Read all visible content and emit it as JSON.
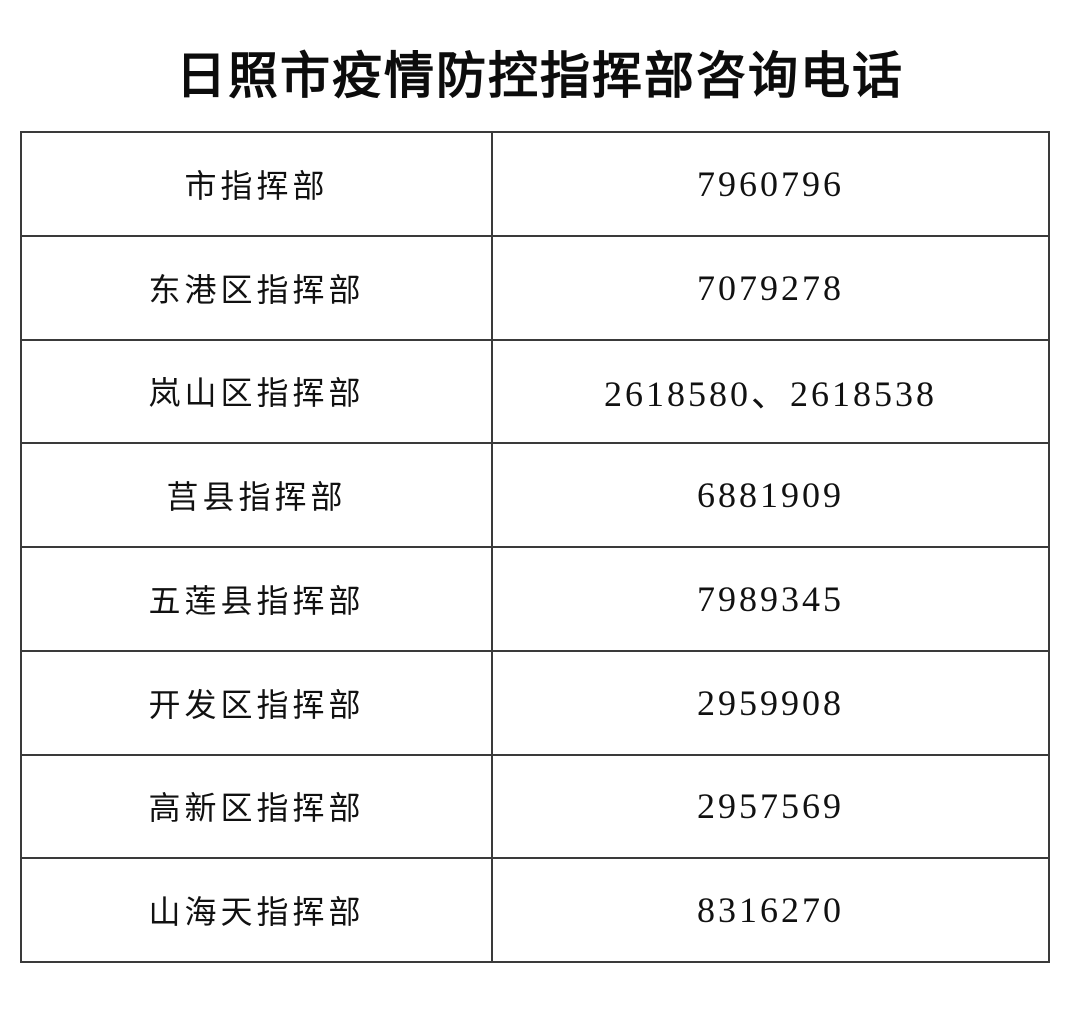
{
  "page": {
    "title": "日照市疫情防控指挥部咨询电话"
  },
  "table": {
    "rows": [
      {
        "name": "市指挥部",
        "phone": "7960796"
      },
      {
        "name": "东港区指挥部",
        "phone": "7079278"
      },
      {
        "name": "岚山区指挥部",
        "phone": "2618580、2618538"
      },
      {
        "name": "莒县指挥部",
        "phone": "6881909"
      },
      {
        "name": "五莲县指挥部",
        "phone": "7989345"
      },
      {
        "name": "开发区指挥部",
        "phone": "2959908"
      },
      {
        "name": "高新区指挥部",
        "phone": "2957569"
      },
      {
        "name": "山海天指挥部",
        "phone": "8316270"
      }
    ]
  },
  "colors": {
    "background": "#ffffff",
    "text": "#111111",
    "border": "#3a3a3a"
  }
}
